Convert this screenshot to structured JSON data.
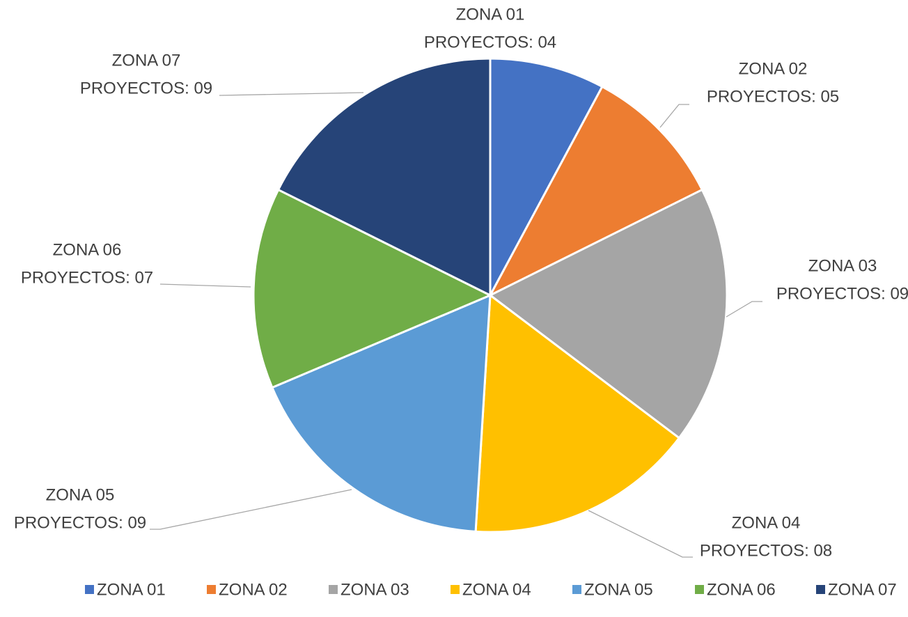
{
  "chart_data": {
    "type": "pie",
    "categories": [
      "ZONA 01",
      "ZONA 02",
      "ZONA 03",
      "ZONA 04",
      "ZONA 05",
      "ZONA 06",
      "ZONA 07"
    ],
    "values": [
      4,
      5,
      9,
      8,
      9,
      7,
      9
    ],
    "value_labels": [
      "PROYECTOS: 04",
      "PROYECTOS: 05",
      "PROYECTOS: 09",
      "PROYECTOS: 08",
      "PROYECTOS: 09",
      "PROYECTOS: 07",
      "PROYECTOS: 09"
    ],
    "colors": [
      "#4472c4",
      "#ed7d31",
      "#a5a5a5",
      "#ffc000",
      "#5b9bd5",
      "#70ad47",
      "#264478"
    ],
    "legend": "bottom"
  }
}
